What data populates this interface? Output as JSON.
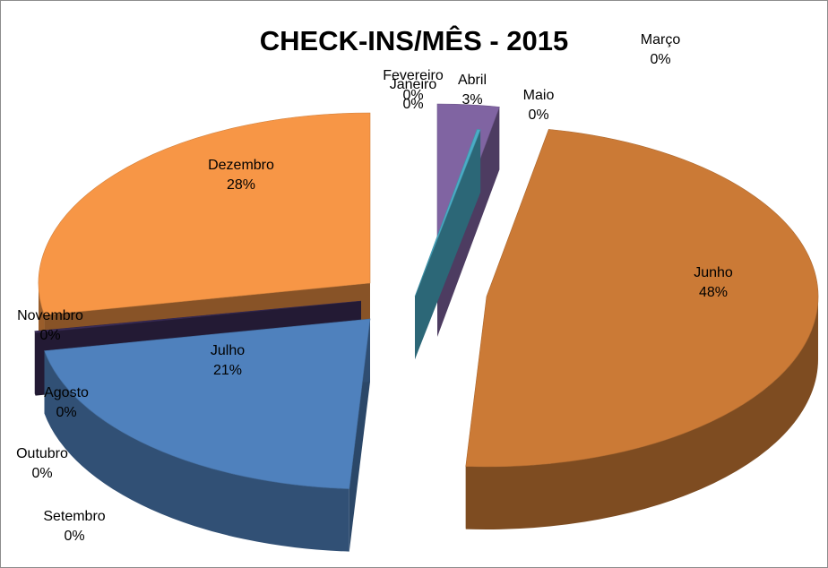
{
  "chart_data": {
    "type": "pie",
    "title": "CHECK-INS/MÊS - 2015",
    "categories": [
      "Janeiro",
      "Fevereiro",
      "Março",
      "Abril",
      "Maio",
      "Junho",
      "Julho",
      "Agosto",
      "Setembro",
      "Outubro",
      "Novembro",
      "Dezembro"
    ],
    "values": [
      0,
      0,
      0,
      3,
      0,
      48,
      21,
      0,
      0,
      0,
      0,
      28
    ],
    "value_labels": [
      "0%",
      "0%",
      "0%",
      "3%",
      "0%",
      "48%",
      "21%",
      "0%",
      "0%",
      "0%",
      "0%",
      "28%"
    ],
    "exploded": true,
    "three_d": true,
    "colors": {
      "Abril": "#8064a2",
      "Maio": "#4aacc6",
      "Junho": "#cb7a36",
      "Julho": "#4f81bd",
      "Novembro": "#3a2c57",
      "Dezembro": "#f79646"
    }
  }
}
